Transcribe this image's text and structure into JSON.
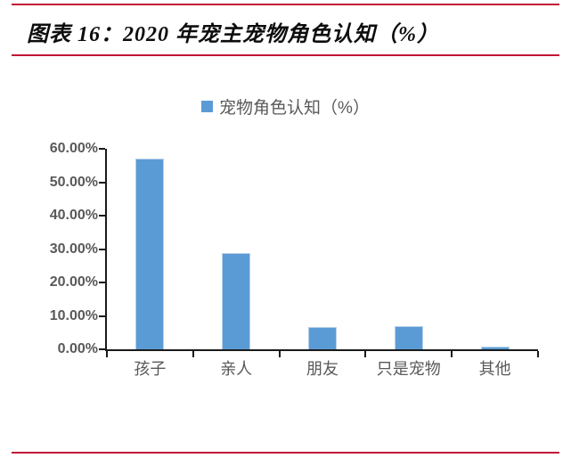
{
  "header": {
    "title": "图表 16：2020 年宠主宠物角色认知（%）"
  },
  "legend": {
    "label": "宠物角色认知（%）"
  },
  "colors": {
    "bar": "#5b9bd5",
    "rule_red": "#c21437",
    "axis_line": "#1a1a1a",
    "axis_text": "#595959"
  },
  "chart_data": {
    "type": "bar",
    "title": "2020 年宠主宠物角色认知（%）",
    "series_name": "宠物角色认知（%）",
    "categories": [
      "孩子",
      "亲人",
      "朋友",
      "只是宠物",
      "其他"
    ],
    "values": [
      57.0,
      28.8,
      6.8,
      7.0,
      0.9
    ],
    "xlabel": "",
    "ylabel": "",
    "ylim": [
      0,
      60
    ],
    "ytick_step": 10,
    "ytick_labels": [
      "0.00%",
      "10.00%",
      "20.00%",
      "30.00%",
      "40.00%",
      "50.00%",
      "60.00%"
    ],
    "grid": false,
    "legend_position": "top-center"
  }
}
